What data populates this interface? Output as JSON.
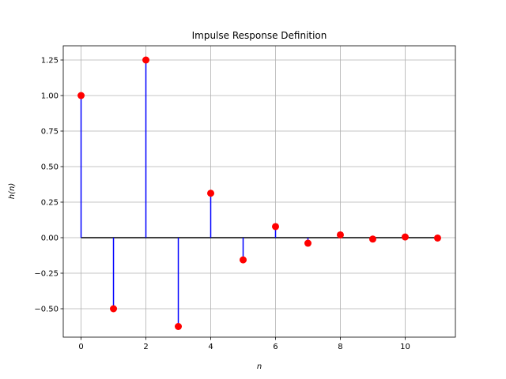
{
  "chart_data": {
    "type": "stem",
    "title": "Impulse Response Definition",
    "xlabel": "n",
    "ylabel": "h(n)",
    "x": [
      0,
      1,
      2,
      3,
      4,
      5,
      6,
      7,
      8,
      9,
      10,
      11
    ],
    "values": [
      1.0,
      -0.5,
      1.25,
      -0.625,
      0.3125,
      -0.15625,
      0.078125,
      -0.0390625,
      0.01953125,
      -0.009765625,
      0.0048828125,
      -0.00244140625
    ],
    "xlim": [
      -0.55,
      11.55
    ],
    "ylim": [
      -0.7,
      1.35
    ],
    "xticks": [
      0,
      2,
      4,
      6,
      8,
      10
    ],
    "xtick_labels": [
      "0",
      "2",
      "4",
      "6",
      "8",
      "10"
    ],
    "yticks": [
      -0.5,
      -0.25,
      0.0,
      0.25,
      0.5,
      0.75,
      1.0,
      1.25
    ],
    "ytick_labels": [
      "−0.50",
      "−0.25",
      "0.00",
      "0.25",
      "0.50",
      "0.75",
      "1.00",
      "1.25"
    ],
    "grid": true,
    "stem_color": "#0000ff",
    "marker_color": "#ff0000",
    "baseline_color": "#000000",
    "grid_color": "#b0b0b0"
  }
}
